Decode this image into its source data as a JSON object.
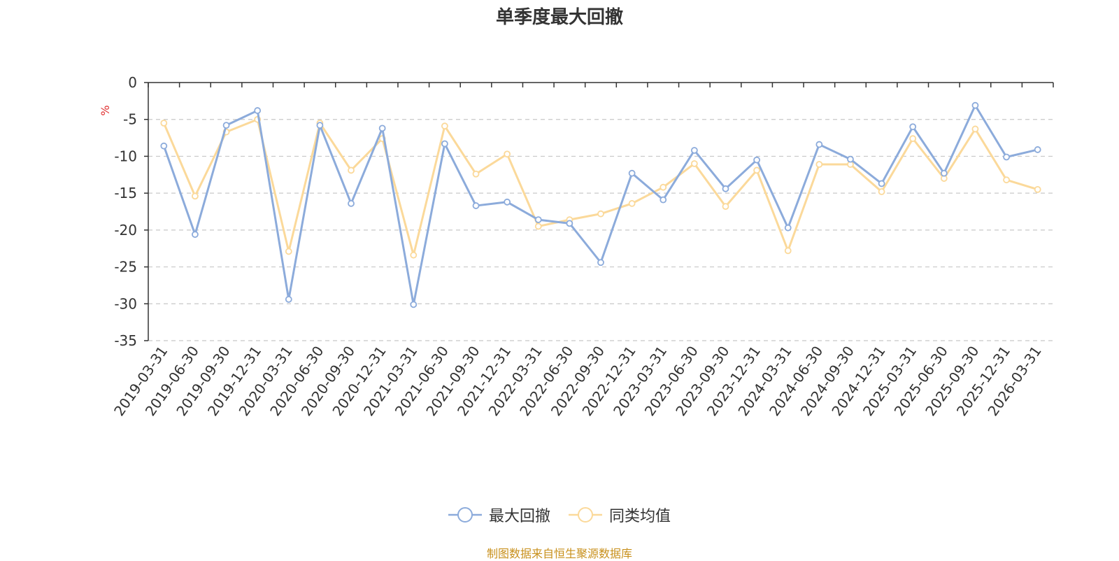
{
  "title": "单季度最大回撤",
  "source_note": "制图数据来自恒生聚源数据库",
  "chart_data": {
    "type": "line",
    "title": "单季度最大回撤",
    "ylabel": "%",
    "ylim": [
      -35,
      0
    ],
    "yticks": [
      0,
      -5,
      -10,
      -15,
      -20,
      -25,
      -30,
      -35
    ],
    "grid": true,
    "legend_position": "bottom-center",
    "categories": [
      "2019-03-31",
      "2019-06-30",
      "2019-09-30",
      "2019-12-31",
      "2020-03-31",
      "2020-06-30",
      "2020-09-30",
      "2020-12-31",
      "2021-03-31",
      "2021-06-30",
      "2021-09-30",
      "2021-12-31",
      "2022-03-31",
      "2022-06-30",
      "2022-09-30",
      "2022-12-31",
      "2023-03-31",
      "2023-06-30",
      "2023-09-30",
      "2023-12-31",
      "2024-03-31",
      "2024-06-30",
      "2024-09-30",
      "2024-12-31",
      "2025-03-31",
      "2025-06-30",
      "2025-09-30",
      "2025-12-31",
      "2026-03-31"
    ],
    "series": [
      {
        "name": "最大回撤",
        "color": "#8cabdb",
        "values": [
          -8.6,
          -20.6,
          -5.8,
          -3.8,
          -29.4,
          -5.8,
          -16.4,
          -6.2,
          -30.1,
          -8.3,
          -16.7,
          -16.2,
          -18.6,
          -19.1,
          -24.4,
          -12.3,
          -15.9,
          -9.2,
          -14.4,
          -10.5,
          -19.7,
          -8.4,
          -10.4,
          -13.7,
          -6.0,
          -12.3,
          -3.1,
          -10.1,
          -9.1
        ]
      },
      {
        "name": "同类均值",
        "color": "#fbd99a",
        "values": [
          -5.5,
          -15.4,
          -6.7,
          -5.0,
          -22.9,
          -5.5,
          -11.9,
          -7.6,
          -23.4,
          -5.9,
          -12.4,
          -9.7,
          -19.5,
          -18.6,
          -17.8,
          -16.4,
          -14.2,
          -11.0,
          -16.8,
          -11.9,
          -22.8,
          -11.1,
          -11.1,
          -14.8,
          -7.6,
          -13.0,
          -6.3,
          -13.2,
          -14.5
        ]
      }
    ]
  }
}
